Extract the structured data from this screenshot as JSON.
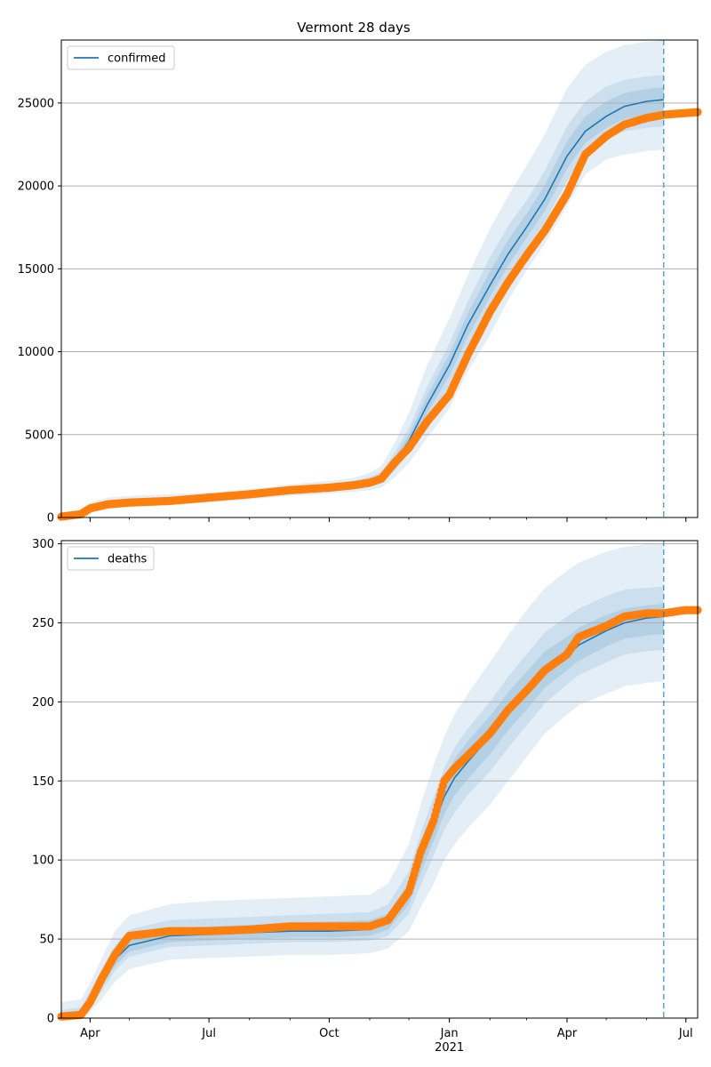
{
  "title": "Vermont 28 days",
  "chart_data": [
    {
      "type": "line",
      "legend": {
        "label": "confirmed",
        "placement": "top-left"
      },
      "xlim": [
        "2020-03-10",
        "2021-07-10"
      ],
      "ylim": [
        0,
        28800
      ],
      "yticks": [
        0,
        5000,
        10000,
        15000,
        20000,
        25000
      ],
      "grid": "horizontal",
      "forecast_marker_date": "2021-06-14",
      "observed": {
        "x": [
          "2020-03-10",
          "2020-03-25",
          "2020-04-01",
          "2020-04-15",
          "2020-05-01",
          "2020-06-01",
          "2020-07-01",
          "2020-08-01",
          "2020-09-01",
          "2020-10-01",
          "2020-10-20",
          "2020-11-01",
          "2020-11-10",
          "2020-11-20",
          "2020-12-01",
          "2020-12-15",
          "2021-01-01",
          "2021-01-15",
          "2021-02-01",
          "2021-02-15",
          "2021-03-01",
          "2021-03-15",
          "2021-04-01",
          "2021-04-15",
          "2021-05-01",
          "2021-05-15",
          "2021-06-01",
          "2021-06-15",
          "2021-07-10"
        ],
        "y": [
          50,
          200,
          550,
          800,
          900,
          1000,
          1200,
          1400,
          1650,
          1800,
          1950,
          2100,
          2350,
          3300,
          4200,
          5800,
          7400,
          9800,
          12400,
          14200,
          15800,
          17300,
          19500,
          21900,
          23000,
          23700,
          24100,
          24300,
          24450
        ]
      },
      "model": {
        "x": [
          "2020-03-10",
          "2020-03-25",
          "2020-04-01",
          "2020-04-15",
          "2020-05-01",
          "2020-06-01",
          "2020-07-01",
          "2020-08-01",
          "2020-09-01",
          "2020-10-01",
          "2020-10-20",
          "2020-11-01",
          "2020-11-10",
          "2020-11-20",
          "2020-12-01",
          "2020-12-15",
          "2021-01-01",
          "2021-01-15",
          "2021-02-01",
          "2021-02-15",
          "2021-03-01",
          "2021-03-15",
          "2021-04-01",
          "2021-04-15",
          "2021-05-01",
          "2021-05-15",
          "2021-06-01",
          "2021-06-14"
        ],
        "y": [
          50,
          200,
          550,
          800,
          900,
          1000,
          1200,
          1400,
          1650,
          1800,
          1950,
          2100,
          2350,
          3300,
          4600,
          6800,
          9200,
          11600,
          14000,
          15900,
          17500,
          19200,
          21800,
          23300,
          24200,
          24800,
          25100,
          25200
        ],
        "bands": {
          "outer": {
            "low": [
              0,
              100,
              300,
              550,
              650,
              750,
              900,
              1100,
              1300,
              1450,
              1550,
              1650,
              1800,
              2400,
              3300,
              4800,
              6600,
              8800,
              11000,
              13100,
              14900,
              16500,
              18800,
              20700,
              21600,
              21900,
              22100,
              22200
            ],
            "high": [
              100,
              350,
              900,
              1200,
              1300,
              1400,
              1500,
              1700,
              2000,
              2200,
              2400,
              2700,
              3100,
              4500,
              6300,
              9200,
              12000,
              14600,
              17400,
              19400,
              21200,
              23100,
              25900,
              27300,
              28100,
              28500,
              28700,
              28800
            ]
          },
          "mid": {
            "low": [
              20,
              150,
              400,
              650,
              750,
              850,
              1000,
              1200,
              1450,
              1600,
              1700,
              1850,
              2050,
              2800,
              3900,
              5800,
              7900,
              10200,
              12500,
              14500,
              16200,
              17800,
              20300,
              21900,
              22800,
              23300,
              23500,
              23600
            ],
            "high": [
              80,
              280,
              750,
              1000,
              1100,
              1200,
              1400,
              1600,
              1850,
              2000,
              2200,
              2450,
              2750,
              3900,
              5400,
              7900,
              10500,
              13000,
              15700,
              17600,
              19100,
              20900,
              23600,
              25100,
              26000,
              26400,
              26600,
              26700
            ]
          },
          "inner": {
            "low": [
              35,
              175,
              480,
              720,
              830,
              920,
              1100,
              1300,
              1550,
              1700,
              1830,
              1980,
              2200,
              3050,
              4250,
              6300,
              8550,
              10900,
              13300,
              15200,
              16850,
              18500,
              21050,
              22600,
              23500,
              24050,
              24300,
              24400
            ],
            "high": [
              65,
              230,
              630,
              880,
              980,
              1080,
              1300,
              1500,
              1750,
              1900,
              2070,
              2270,
              2550,
              3600,
              5000,
              7350,
              9850,
              12300,
              14850,
              16750,
              18300,
              20050,
              22700,
              24200,
              25100,
              25600,
              25850,
              25950
            ]
          }
        }
      }
    },
    {
      "type": "line",
      "legend": {
        "label": "deaths",
        "placement": "top-left"
      },
      "xlim": [
        "2020-03-10",
        "2021-07-10"
      ],
      "ylim": [
        0,
        302
      ],
      "yticks": [
        0,
        50,
        100,
        150,
        200,
        250,
        300
      ],
      "grid": "horizontal",
      "forecast_marker_date": "2021-06-14",
      "observed": {
        "x": [
          "2020-03-10",
          "2020-03-25",
          "2020-04-01",
          "2020-04-10",
          "2020-04-20",
          "2020-05-01",
          "2020-06-01",
          "2020-07-01",
          "2020-08-01",
          "2020-09-01",
          "2020-10-01",
          "2020-11-01",
          "2020-11-15",
          "2020-12-01",
          "2020-12-10",
          "2020-12-20",
          "2020-12-28",
          "2021-01-05",
          "2021-01-15",
          "2021-02-01",
          "2021-02-15",
          "2021-03-01",
          "2021-03-15",
          "2021-04-01",
          "2021-04-10",
          "2021-05-01",
          "2021-05-15",
          "2021-06-01",
          "2021-06-14",
          "2021-06-30",
          "2021-07-10"
        ],
        "y": [
          1,
          2,
          10,
          25,
          40,
          52,
          55,
          55,
          56,
          58,
          58,
          58,
          62,
          80,
          105,
          125,
          150,
          158,
          166,
          180,
          195,
          207,
          220,
          230,
          241,
          248,
          254,
          256,
          256,
          258,
          258
        ]
      },
      "model": {
        "x": [
          "2020-03-10",
          "2020-03-25",
          "2020-04-01",
          "2020-04-10",
          "2020-04-20",
          "2020-05-01",
          "2020-06-01",
          "2020-07-01",
          "2020-08-01",
          "2020-09-01",
          "2020-10-01",
          "2020-11-01",
          "2020-11-15",
          "2020-12-01",
          "2020-12-10",
          "2020-12-20",
          "2020-12-28",
          "2021-01-05",
          "2021-01-15",
          "2021-02-01",
          "2021-02-15",
          "2021-03-01",
          "2021-03-15",
          "2021-04-01",
          "2021-04-10",
          "2021-05-01",
          "2021-05-15",
          "2021-06-01",
          "2021-06-14"
        ],
        "y": [
          1,
          3,
          11,
          23,
          37,
          46,
          52,
          53,
          54,
          55,
          55,
          56,
          60,
          78,
          100,
          122,
          140,
          152,
          162,
          178,
          193,
          206,
          219,
          229,
          236,
          245,
          250,
          253,
          254
        ],
        "bands": {
          "outer": {
            "low": [
              0,
              0,
              4,
              12,
              23,
              31,
              37,
              38,
              39,
              40,
              40,
              41,
              44,
              55,
              70,
              85,
              100,
              110,
              120,
              135,
              150,
              165,
              180,
              192,
              198,
              205,
              210,
              212,
              213
            ],
            "high": [
              10,
              12,
              22,
              38,
              55,
              65,
              72,
              74,
              75,
              76,
              77,
              78,
              85,
              110,
              135,
              160,
              178,
              192,
              205,
              225,
              242,
              258,
              272,
              283,
              288,
              295,
              298,
              300,
              300
            ]
          },
          "mid": {
            "low": [
              0,
              1,
              7,
              17,
              30,
              39,
              45,
              46,
              47,
              48,
              48,
              49,
              52,
              66,
              84,
              103,
              119,
              130,
              141,
              156,
              171,
              185,
              199,
              211,
              217,
              225,
              230,
              232,
              233
            ],
            "high": [
              5,
              7,
              17,
              31,
              46,
              56,
              62,
              63,
              64,
              65,
              66,
              67,
              72,
              93,
              117,
              140,
              158,
              171,
              183,
              200,
              216,
              230,
              244,
              254,
              259,
              267,
              271,
              272,
              273
            ]
          },
          "inner": {
            "low": [
              0,
              2,
              9,
              20,
              33,
              42,
              48,
              49,
              50,
              51,
              51,
              52,
              56,
              72,
              92,
              112,
              129,
              141,
              151,
              167,
              182,
              195,
              209,
              220,
              226,
              235,
              240,
              242,
              243
            ],
            "high": [
              3,
              5,
              14,
              27,
              42,
              52,
              57,
              58,
              59,
              60,
              61,
              62,
              66,
              86,
              110,
              132,
              151,
              164,
              175,
              191,
              206,
              219,
              232,
              241,
              247,
              255,
              259,
              261,
              262
            ]
          }
        }
      }
    }
  ],
  "xaxis": {
    "major_ticks": [
      {
        "date": "2020-04-01",
        "label": "Apr"
      },
      {
        "date": "2020-07-01",
        "label": "Jul"
      },
      {
        "date": "2020-10-01",
        "label": "Oct"
      },
      {
        "date": "2021-01-01",
        "label": "Jan"
      },
      {
        "date": "2021-04-01",
        "label": "Apr"
      },
      {
        "date": "2021-07-01",
        "label": "Jul"
      }
    ],
    "year_label": {
      "date": "2021-01-01",
      "label": "2021"
    }
  },
  "colors": {
    "model": "#1f77b4",
    "observed": "#ff7f0e",
    "band": "#1f77b4",
    "grid": "#b0b0b0"
  }
}
